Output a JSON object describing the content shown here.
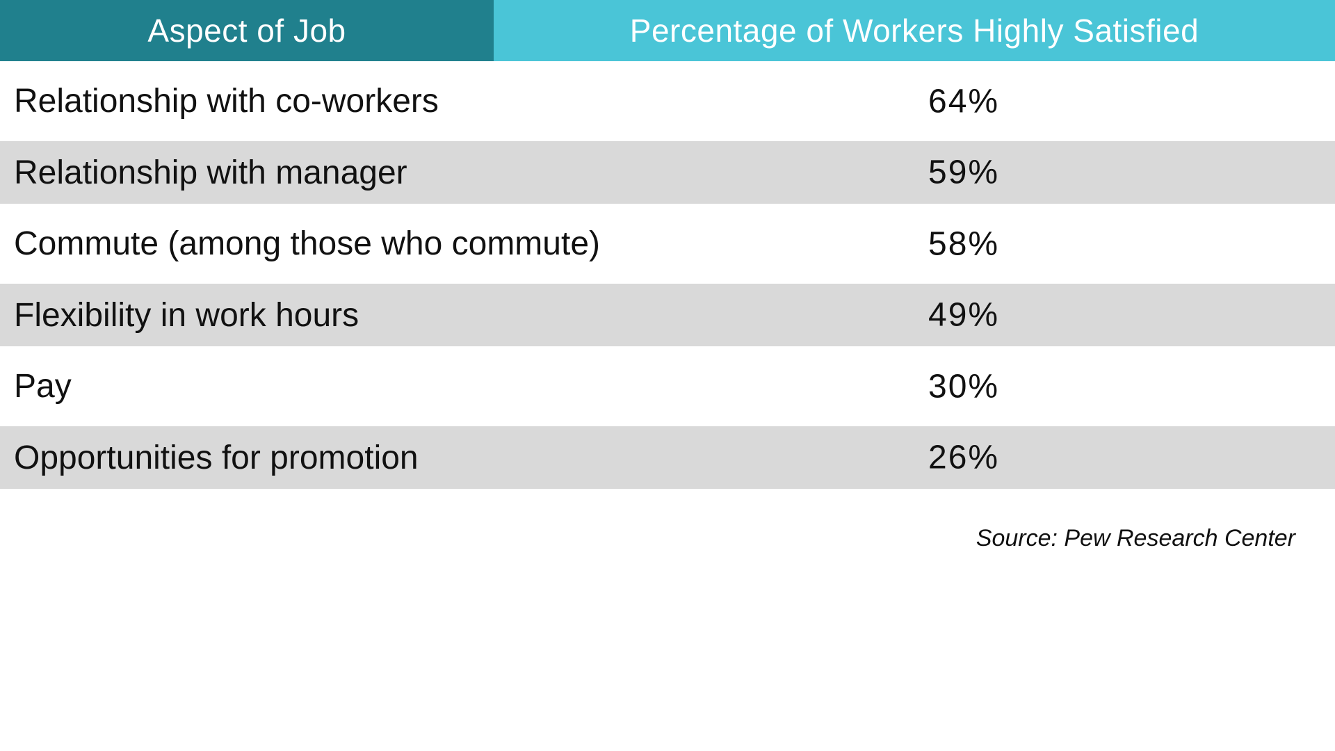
{
  "table": {
    "header": {
      "aspect_label": "Aspect of Job",
      "percent_label": "Percentage of Workers Highly Satisfied"
    },
    "rows": [
      {
        "aspect": "Relationship with co-workers",
        "percent": "64%"
      },
      {
        "aspect": "Relationship with manager",
        "percent": "59%"
      },
      {
        "aspect": "Commute (among those who commute)",
        "percent": "58%"
      },
      {
        "aspect": "Flexibility in work hours",
        "percent": "49%"
      },
      {
        "aspect": "Pay",
        "percent": "30%"
      },
      {
        "aspect": "Opportunities for promotion",
        "percent": "26%"
      }
    ]
  },
  "source": "Source: Pew Research Center",
  "colors": {
    "header_left_bg": "#20808d",
    "header_right_bg": "#4ac5d7",
    "row_alt_bg": "#d9d9d9",
    "header_text": "#ffffff",
    "row_text": "#111111"
  },
  "chart_data": {
    "type": "table",
    "title": "Percentage of Workers Highly Satisfied by Aspect of Job",
    "columns": [
      "Aspect of Job",
      "Percentage of Workers Highly Satisfied"
    ],
    "categories": [
      "Relationship with co-workers",
      "Relationship with manager",
      "Commute (among those who commute)",
      "Flexibility in work hours",
      "Pay",
      "Opportunities for promotion"
    ],
    "values": [
      64,
      59,
      58,
      49,
      30,
      26
    ],
    "value_unit": "%",
    "row_striping": "alternate gray on rows 2, 4, 6",
    "source": "Source: Pew Research Center"
  }
}
